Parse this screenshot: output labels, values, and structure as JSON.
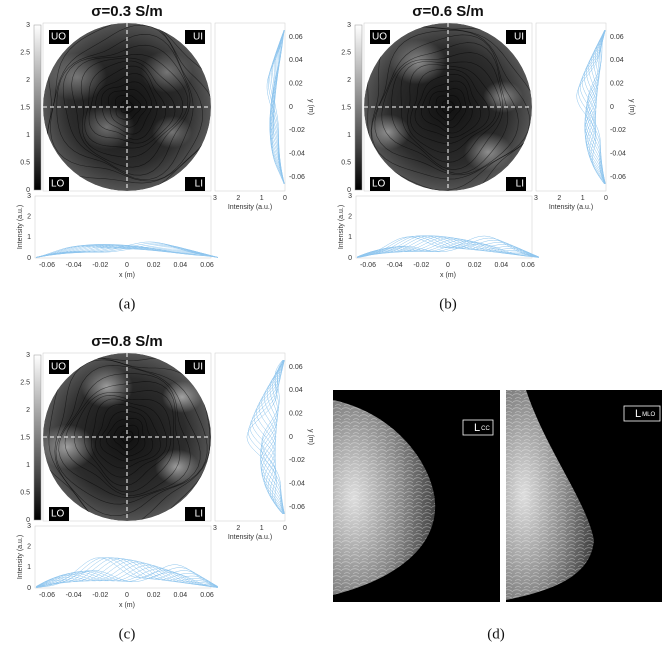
{
  "panels": [
    {
      "title": "σ=0.3 S/m",
      "caption": "(a)"
    },
    {
      "title": "σ=0.6 S/m",
      "caption": "(b)"
    },
    {
      "title": "σ=0.8 S/m",
      "caption": "(c)"
    }
  ],
  "quadrants": [
    "UO",
    "UI",
    "LO",
    "LI"
  ],
  "colorbar_ticks": [
    0,
    0.5,
    1,
    1.5,
    2,
    2.5,
    3
  ],
  "side_xticks": [
    3,
    2,
    1,
    0
  ],
  "side_xlabel": "Intensity (a.u.)",
  "side_yticks": [
    0.06,
    0.04,
    0.02,
    0,
    -0.02,
    -0.04,
    -0.06
  ],
  "side_ylabel": "y (m)",
  "bottom_yticks": [
    0,
    1,
    2,
    3
  ],
  "bottom_ylabel": "Intensity (a.u.)",
  "bottom_xticks": [
    -0.06,
    -0.04,
    -0.02,
    0,
    0.02,
    0.04,
    0.06
  ],
  "bottom_xlabel": "x (m)",
  "mammogram": {
    "views": [
      {
        "side": "L",
        "view": "CC"
      },
      {
        "side": "L",
        "view": "MLO"
      }
    ],
    "caption": "(d)"
  }
}
